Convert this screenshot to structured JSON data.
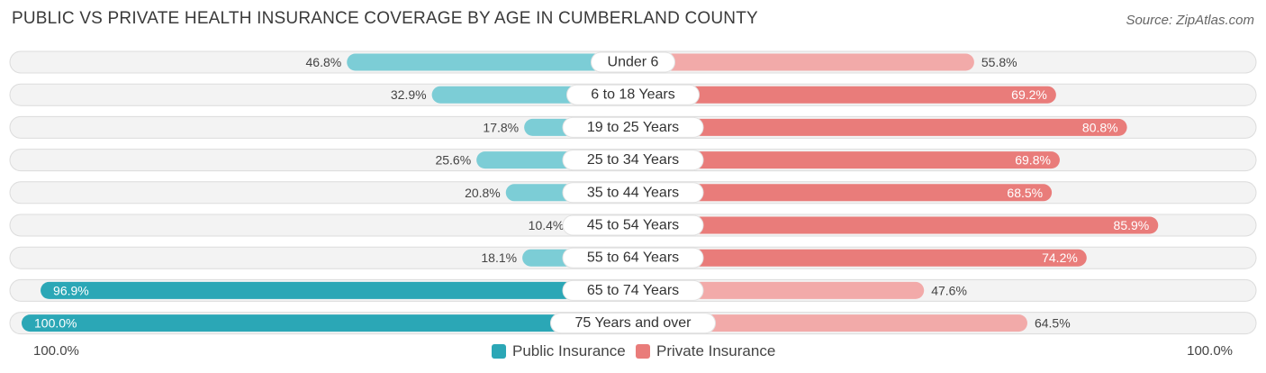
{
  "chart_data": {
    "type": "bar",
    "orientation": "horizontal-diverging",
    "title": "PUBLIC VS PRIVATE HEALTH INSURANCE COVERAGE BY AGE IN CUMBERLAND COUNTY",
    "source": "Source: ZipAtlas.com",
    "categories": [
      "Under 6",
      "6 to 18 Years",
      "19 to 25 Years",
      "25 to 34 Years",
      "35 to 44 Years",
      "45 to 54 Years",
      "55 to 64 Years",
      "65 to 74 Years",
      "75 Years and over"
    ],
    "series": [
      {
        "name": "Public Insurance",
        "values": [
          46.8,
          32.9,
          17.8,
          25.6,
          20.8,
          10.4,
          18.1,
          96.9,
          100.0
        ],
        "labels": [
          "46.8%",
          "32.9%",
          "17.8%",
          "25.6%",
          "20.8%",
          "10.4%",
          "18.1%",
          "96.9%",
          "100.0%"
        ]
      },
      {
        "name": "Private Insurance",
        "values": [
          55.8,
          69.2,
          80.8,
          69.8,
          68.5,
          85.9,
          74.2,
          47.6,
          64.5
        ],
        "labels": [
          "55.8%",
          "69.2%",
          "80.8%",
          "69.8%",
          "68.5%",
          "85.9%",
          "74.2%",
          "47.6%",
          "64.5%"
        ]
      }
    ],
    "xlim": [
      0,
      100
    ],
    "axis_left_label": "100.0%",
    "axis_right_label": "100.0%",
    "legend_position": "bottom-center",
    "colors": {
      "public_strong": "#2ba7b6",
      "public_light": "#7ccdd6",
      "private_strong": "#e97c7a",
      "private_light": "#f2aaa9"
    }
  }
}
